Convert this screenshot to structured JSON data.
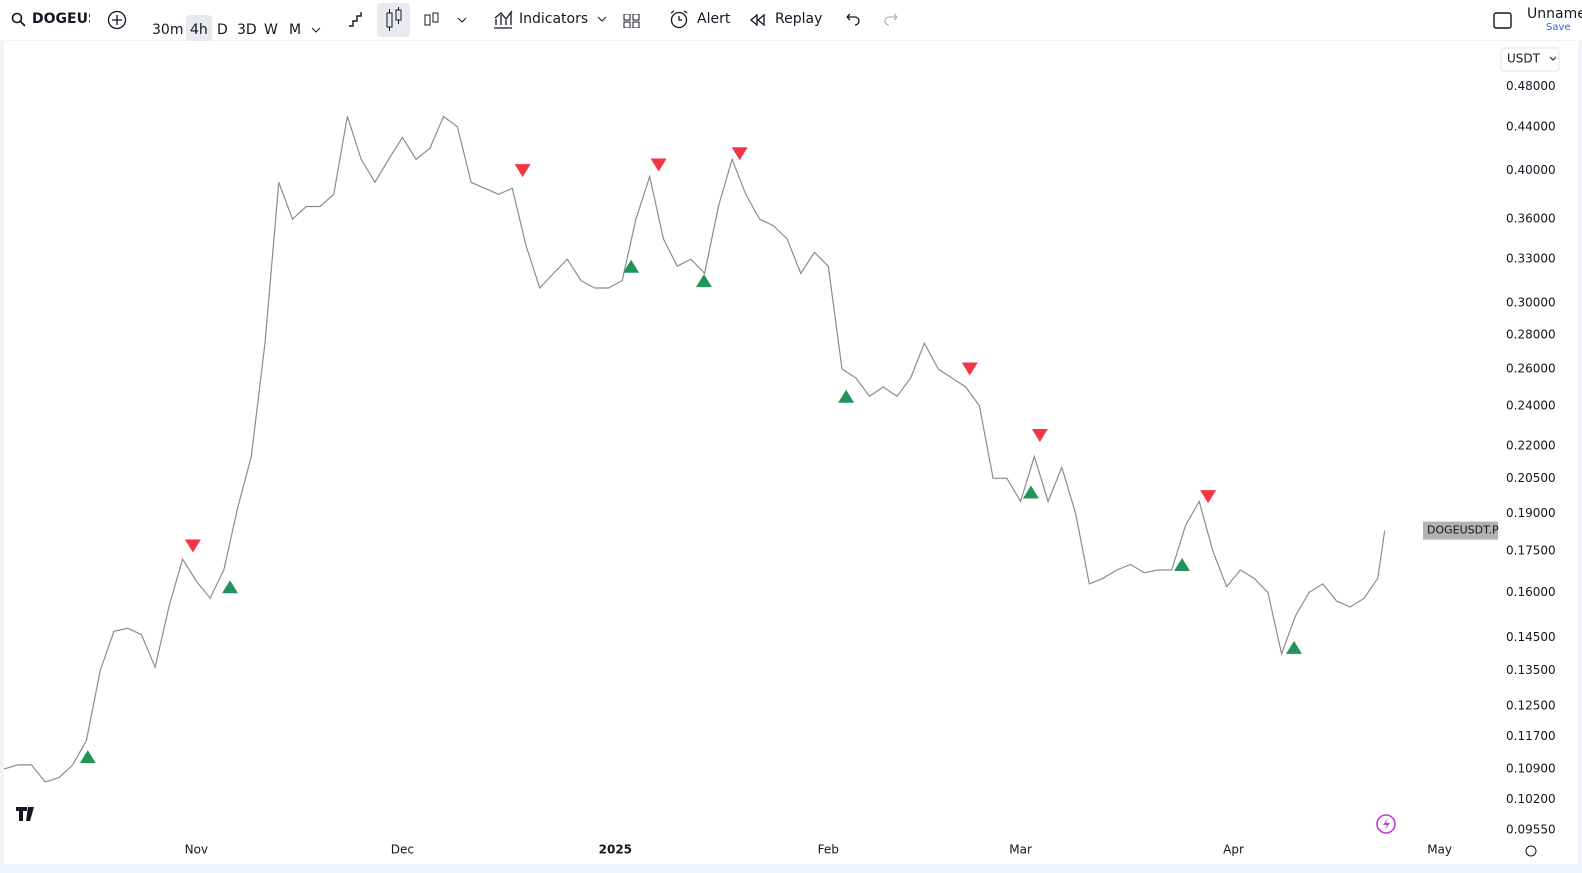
{
  "toolbar": {
    "symbol": "DOGEUSDT",
    "intervals": [
      "30m",
      "4h",
      "D",
      "3D",
      "W",
      "M"
    ],
    "active_interval": 1,
    "indicators": "Indicators",
    "alert": "Alert",
    "replay": "Replay",
    "layout_name": "Unnamed",
    "save": "Save"
  },
  "chart_data": {
    "type": "line",
    "log_scale": true,
    "grid": false,
    "currency": "USDT",
    "x": [
      0,
      2,
      4,
      6,
      8,
      10,
      12,
      14,
      16,
      18,
      20,
      22,
      24,
      26,
      28,
      30,
      32,
      34,
      36,
      38,
      40,
      42,
      44,
      46,
      48,
      50,
      52,
      54,
      56,
      58,
      60,
      62,
      64,
      66,
      68,
      70,
      72,
      74,
      76,
      78,
      80,
      82,
      84,
      86,
      88,
      90,
      92,
      94,
      96,
      98,
      100,
      102,
      104,
      106,
      108,
      110,
      112,
      114,
      116,
      118,
      120,
      122,
      124,
      126,
      128,
      130,
      132,
      134,
      136,
      138,
      140,
      142,
      144,
      146,
      148,
      150,
      152,
      154,
      156,
      158,
      160,
      162,
      164,
      166,
      168,
      170,
      172,
      174,
      176,
      178,
      180,
      182,
      184,
      186,
      188,
      190,
      192,
      194,
      196,
      198,
      200,
      201
    ],
    "series": [
      {
        "name": "DOGEUSDT.P",
        "color": "#8c8c8c",
        "values": [
          0.109,
          0.11,
          0.11,
          0.106,
          0.107,
          0.11,
          0.116,
          0.135,
          0.147,
          0.148,
          0.146,
          0.136,
          0.155,
          0.172,
          0.164,
          0.158,
          0.168,
          0.192,
          0.215,
          0.275,
          0.39,
          0.36,
          0.37,
          0.37,
          0.38,
          0.45,
          0.41,
          0.39,
          0.41,
          0.43,
          0.41,
          0.42,
          0.45,
          0.44,
          0.39,
          0.385,
          0.38,
          0.385,
          0.34,
          0.31,
          0.32,
          0.33,
          0.315,
          0.31,
          0.31,
          0.315,
          0.36,
          0.395,
          0.345,
          0.325,
          0.33,
          0.32,
          0.37,
          0.41,
          0.38,
          0.36,
          0.355,
          0.345,
          0.32,
          0.335,
          0.325,
          0.26,
          0.255,
          0.245,
          0.25,
          0.245,
          0.255,
          0.275,
          0.26,
          0.255,
          0.25,
          0.24,
          0.205,
          0.205,
          0.195,
          0.215,
          0.195,
          0.21,
          0.19,
          0.163,
          0.165,
          0.168,
          0.17,
          0.167,
          0.168,
          0.168,
          0.185,
          0.195,
          0.175,
          0.162,
          0.168,
          0.165,
          0.16,
          0.14,
          0.152,
          0.16,
          0.163,
          0.157,
          0.155,
          0.158,
          0.165,
          0.183
        ]
      }
    ],
    "buy_signals": {
      "color": "#22935a",
      "x": [
        12.2,
        32.9,
        91.3,
        101.9,
        122.6,
        149.5,
        171.5,
        187.8
      ],
      "values": [
        0.112,
        0.162,
        0.325,
        0.315,
        0.245,
        0.199,
        0.17,
        0.142
      ]
    },
    "sell_signals": {
      "color": "#f23645",
      "x": [
        27.5,
        75.5,
        95.3,
        107.1,
        140.6,
        150.8,
        175.3
      ],
      "values": [
        0.177,
        0.4,
        0.405,
        0.415,
        0.26,
        0.225,
        0.197
      ]
    },
    "xlim": [
      0,
      217.5
    ],
    "xticks": [
      {
        "value": 28,
        "label": "Nov"
      },
      {
        "value": 58,
        "label": "Dec"
      },
      {
        "value": 89,
        "label": "2025"
      },
      {
        "value": 120,
        "label": "Feb"
      },
      {
        "value": 148,
        "label": "Mar"
      },
      {
        "value": 179,
        "label": "Apr"
      },
      {
        "value": 209,
        "label": "May"
      }
    ],
    "ylim": [
      0.0885,
      0.529
    ],
    "yticks": [
      {
        "value": 0.48,
        "label": "0.48000"
      },
      {
        "value": 0.44,
        "label": "0.44000"
      },
      {
        "value": 0.4,
        "label": "0.40000"
      },
      {
        "value": 0.36,
        "label": "0.36000"
      },
      {
        "value": 0.33,
        "label": "0.33000"
      },
      {
        "value": 0.3,
        "label": "0.30000"
      },
      {
        "value": 0.28,
        "label": "0.28000"
      },
      {
        "value": 0.26,
        "label": "0.26000"
      },
      {
        "value": 0.24,
        "label": "0.24000"
      },
      {
        "value": 0.22,
        "label": "0.22000"
      },
      {
        "value": 0.205,
        "label": "0.20500"
      },
      {
        "value": 0.19,
        "label": "0.19000"
      },
      {
        "value": 0.175,
        "label": "0.17500"
      },
      {
        "value": 0.16,
        "label": "0.16000"
      },
      {
        "value": 0.145,
        "label": "0.14500"
      },
      {
        "value": 0.135,
        "label": "0.13500"
      },
      {
        "value": 0.125,
        "label": "0.12500"
      },
      {
        "value": 0.117,
        "label": "0.11700"
      },
      {
        "value": 0.109,
        "label": "0.10900"
      },
      {
        "value": 0.102,
        "label": "0.10200"
      },
      {
        "value": 0.0955,
        "label": "0.09550"
      }
    ]
  }
}
